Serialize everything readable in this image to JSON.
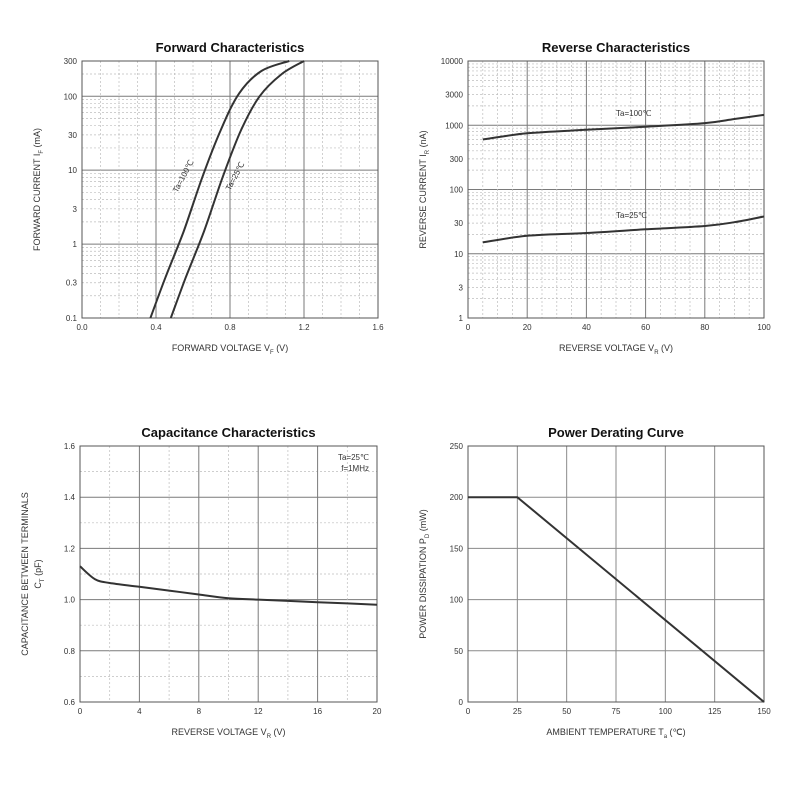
{
  "chart_data": [
    {
      "type": "line",
      "title": "Forward    Characteristics",
      "xlabel": "FORWARD VOLTAGE",
      "xlabel_symbol": "V",
      "xlabel_sub": "F",
      "xlabel_unit": "(V)",
      "ylabel": "FORWARD CURRENT",
      "ylabel_symbol": "I",
      "ylabel_sub": "F",
      "ylabel_unit": "(mA)",
      "xlim": [
        0,
        1.6
      ],
      "ylim": [
        0.1,
        300
      ],
      "yscale": "log",
      "x_ticks": [
        "0.0",
        "0.4",
        "0.8",
        "1.2",
        "1.6"
      ],
      "y_ticks": [
        "0.1",
        "0.3",
        "1",
        "3",
        "10",
        "30",
        "100",
        "300"
      ],
      "series": [
        {
          "name": "Ta=100℃",
          "x": [
            0.37,
            0.45,
            0.55,
            0.65,
            0.75,
            0.85,
            0.97,
            1.12
          ],
          "y": [
            0.1,
            0.35,
            1.5,
            8,
            35,
            110,
            220,
            300
          ]
        },
        {
          "name": "Ta=25℃",
          "x": [
            0.48,
            0.56,
            0.66,
            0.76,
            0.86,
            0.96,
            1.08,
            1.2
          ],
          "y": [
            0.1,
            0.35,
            1.5,
            8,
            35,
            100,
            200,
            300
          ]
        }
      ]
    },
    {
      "type": "line",
      "title": "Reverse    Characteristics",
      "xlabel": "REVERSE VOLTAGE",
      "xlabel_symbol": "V",
      "xlabel_sub": "R",
      "xlabel_unit": "(V)",
      "ylabel": "REVERSE CURRENT",
      "ylabel_symbol": "I",
      "ylabel_sub": "R",
      "ylabel_unit": "(nA)",
      "xlim": [
        0,
        100
      ],
      "ylim": [
        1,
        10000
      ],
      "yscale": "log",
      "x_ticks": [
        "0",
        "20",
        "40",
        "60",
        "80",
        "100"
      ],
      "y_ticks": [
        "1",
        "3",
        "10",
        "30",
        "100",
        "300",
        "1000",
        "3000",
        "10000"
      ],
      "series": [
        {
          "name": "Ta=100℃",
          "x": [
            5,
            20,
            40,
            60,
            80,
            90,
            100
          ],
          "y": [
            600,
            750,
            850,
            950,
            1080,
            1250,
            1450
          ]
        },
        {
          "name": "Ta=25℃",
          "x": [
            5,
            20,
            40,
            60,
            80,
            90,
            100
          ],
          "y": [
            15,
            19,
            21,
            24,
            27,
            31,
            38
          ]
        }
      ]
    },
    {
      "type": "line",
      "title": "Capacitance Characteristics",
      "xlabel": "REVERSE VOLTAGE",
      "xlabel_symbol": "V",
      "xlabel_sub": "R",
      "xlabel_unit": "(V)",
      "ylabel": "CAPACITANCE BETWEEN TERMINALS",
      "ylabel_symbol": "C",
      "ylabel_sub": "T",
      "ylabel_unit": "(pF)",
      "xlim": [
        0,
        20
      ],
      "ylim": [
        0.6,
        1.6
      ],
      "x_ticks": [
        "0",
        "4",
        "8",
        "12",
        "16",
        "20"
      ],
      "y_ticks": [
        "0.6",
        "0.8",
        "1.0",
        "1.2",
        "1.4",
        "1.6"
      ],
      "annotations": [
        "Ta=25℃",
        "f=1MHz"
      ],
      "series": [
        {
          "name": "Ct",
          "x": [
            0,
            1,
            2,
            4,
            6,
            8,
            10,
            12,
            14,
            16,
            18,
            20
          ],
          "y": [
            1.13,
            1.08,
            1.065,
            1.05,
            1.035,
            1.02,
            1.005,
            1.0,
            0.995,
            0.99,
            0.985,
            0.98
          ]
        }
      ]
    },
    {
      "type": "line",
      "title": "Power Derating Curve",
      "xlabel": "AMBIENT TEMPERATURE",
      "xlabel_symbol": "T",
      "xlabel_sub": "a",
      "xlabel_unit": "(℃)",
      "ylabel": "POWER DISSIPATION",
      "ylabel_symbol": "P",
      "ylabel_sub": "D",
      "ylabel_unit": "(mW)",
      "xlim": [
        0,
        150
      ],
      "ylim": [
        0,
        250
      ],
      "x_ticks": [
        "0",
        "25",
        "50",
        "75",
        "100",
        "125",
        "150"
      ],
      "y_ticks": [
        "0",
        "50",
        "100",
        "150",
        "200",
        "250"
      ],
      "series": [
        {
          "name": "PD",
          "x": [
            0,
            25,
            150
          ],
          "y": [
            200,
            200,
            0
          ]
        }
      ]
    }
  ]
}
